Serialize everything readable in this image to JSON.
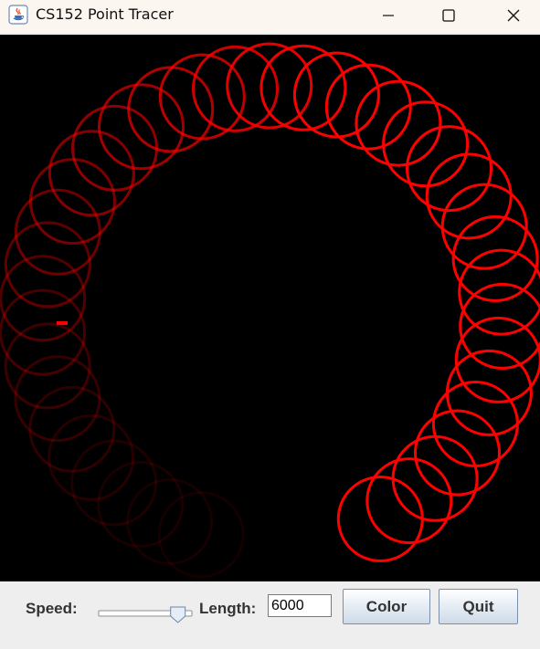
{
  "window": {
    "title": "CS152 Point Tracer"
  },
  "canvas": {
    "background": "#000000",
    "trace_color": "#ff0000"
  },
  "controls": {
    "speed_label": "Speed:",
    "speed_value": 0.88,
    "length_label": "Length:",
    "length_value": "6000",
    "color_button": "Color",
    "quit_button": "Quit"
  }
}
